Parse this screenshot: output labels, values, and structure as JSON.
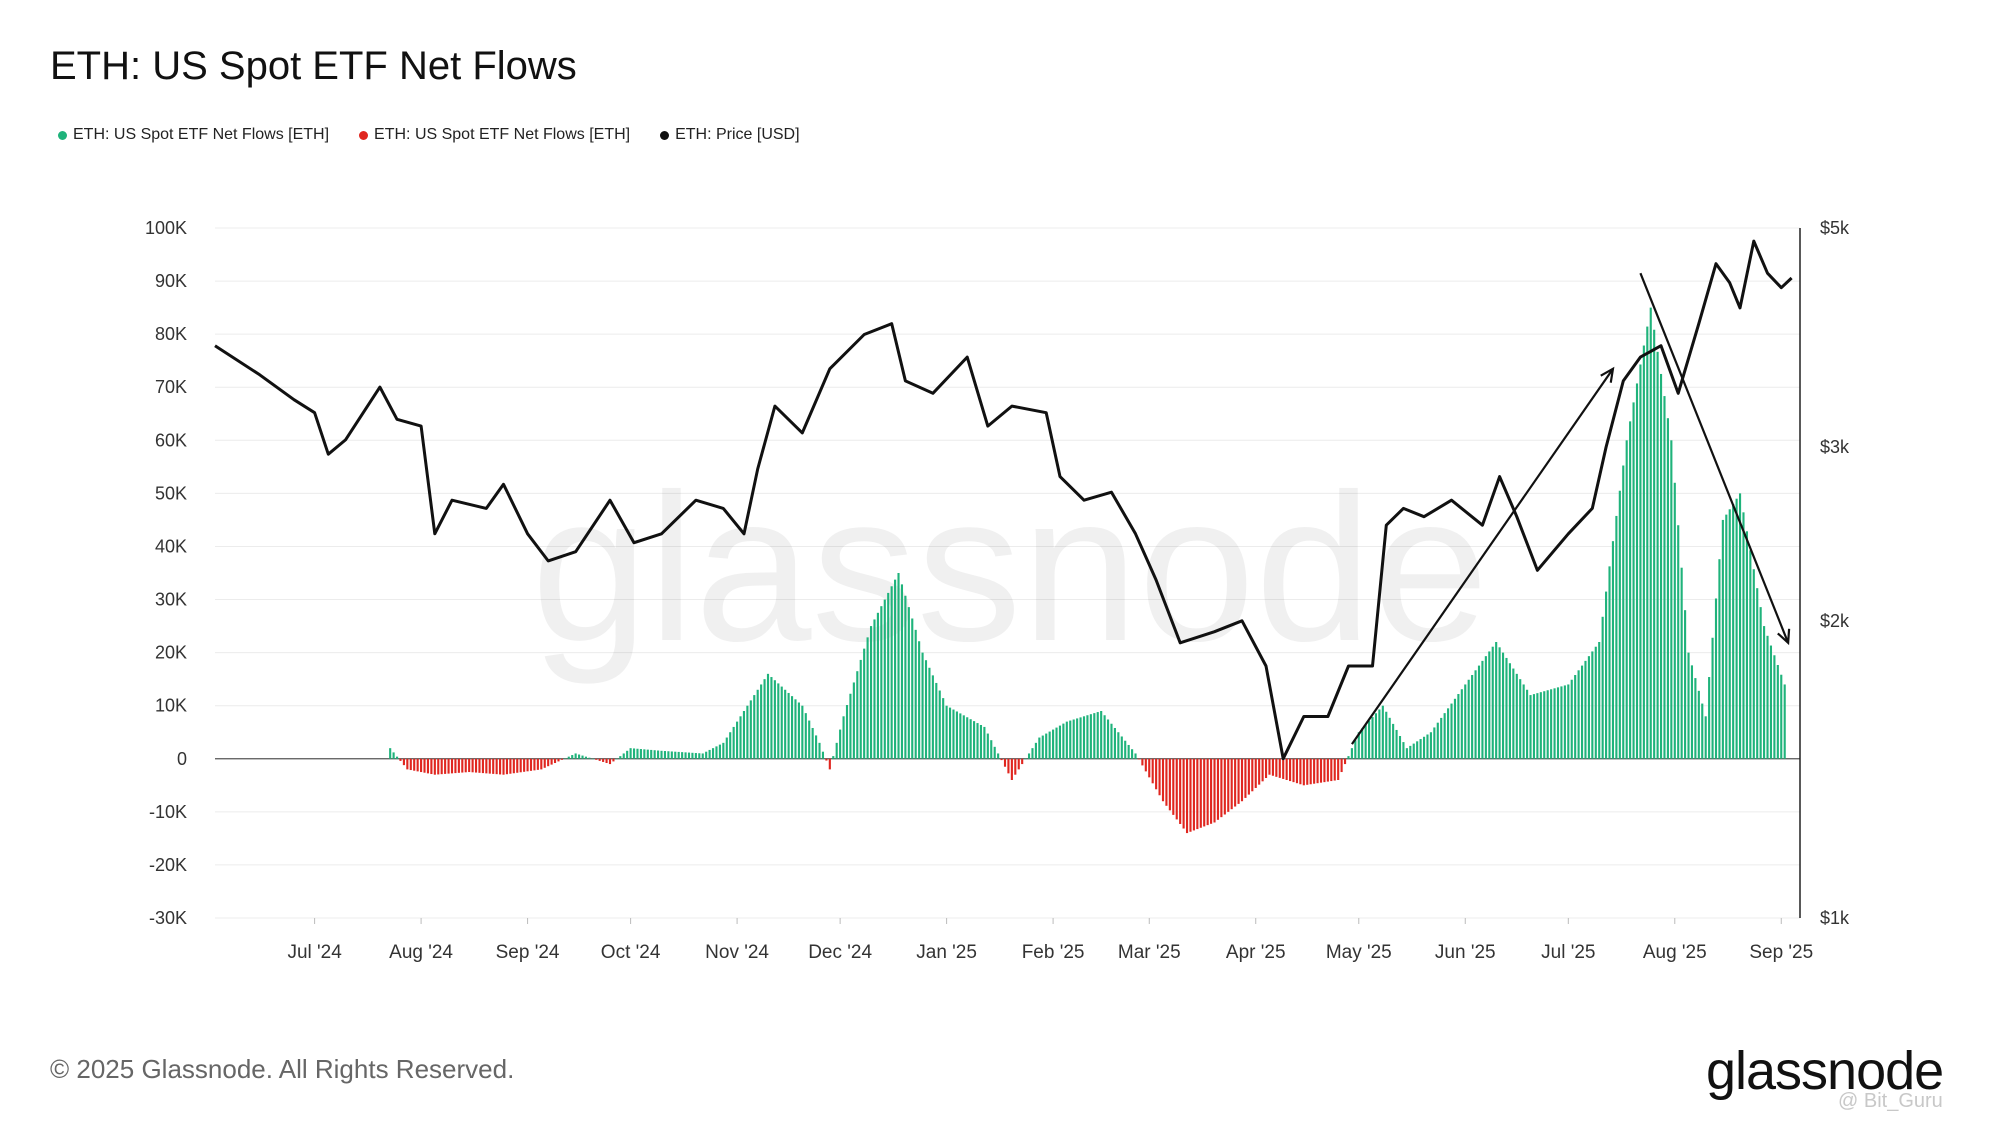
{
  "title": "ETH: US Spot ETF Net Flows",
  "legend": [
    {
      "label": "ETH: US Spot ETF Net Flows [ETH]",
      "color": "#1fb37b"
    },
    {
      "label": "ETH: US Spot ETF Net Flows [ETH]",
      "color": "#e0261f"
    },
    {
      "label": "ETH: Price [USD]",
      "color": "#111111"
    }
  ],
  "footer": "© 2025 Glassnode. All Rights Reserved.",
  "brand": "glassnode",
  "watermark": "glassnode",
  "credit": "@ Bit_Guru",
  "chart_data": {
    "type": "bar+line",
    "title": "ETH: US Spot ETF Net Flows",
    "left_axis": {
      "ticks": [
        "100K",
        "90K",
        "80K",
        "70K",
        "60K",
        "50K",
        "40K",
        "30K",
        "20K",
        "10K",
        "0",
        "-10K",
        "-20K",
        "-30K"
      ],
      "ylim": [
        -30000,
        100000
      ]
    },
    "right_axis": {
      "ticks": [
        "$5k",
        "$3k",
        "$2k",
        "$1k"
      ],
      "scale": "log",
      "ylim": [
        1000,
        5000
      ]
    },
    "x_ticks": [
      "Jul '24",
      "Aug '24",
      "Sep '24",
      "Oct '24",
      "Nov '24",
      "Dec '24",
      "Jan '25",
      "Feb '25",
      "Mar '25",
      "Apr '25",
      "May '25",
      "Jun '25",
      "Jul '25",
      "Aug '25",
      "Sep '25"
    ],
    "x_range": [
      "2024-06-02",
      "2025-09-05"
    ],
    "colors": {
      "positive": "#1fb37b",
      "negative": "#e0261f",
      "price": "#111111",
      "grid": "#ececec"
    },
    "flows": [
      {
        "date": "2024-07-23",
        "value": 2000
      },
      {
        "date": "2024-07-28",
        "value": -2000
      },
      {
        "date": "2024-08-05",
        "value": -3000
      },
      {
        "date": "2024-08-15",
        "value": -2500
      },
      {
        "date": "2024-08-25",
        "value": -3000
      },
      {
        "date": "2024-09-05",
        "value": -2000
      },
      {
        "date": "2024-09-15",
        "value": 1000
      },
      {
        "date": "2024-09-25",
        "value": -1000
      },
      {
        "date": "2024-10-01",
        "value": 2000
      },
      {
        "date": "2024-10-10",
        "value": 1500
      },
      {
        "date": "2024-10-22",
        "value": 1000
      },
      {
        "date": "2024-10-28",
        "value": 3000
      },
      {
        "date": "2024-11-02",
        "value": 8000
      },
      {
        "date": "2024-11-10",
        "value": 16000
      },
      {
        "date": "2024-11-20",
        "value": 10000
      },
      {
        "date": "2024-11-25",
        "value": 3000
      },
      {
        "date": "2024-11-28",
        "value": -2000
      },
      {
        "date": "2024-12-02",
        "value": 8000
      },
      {
        "date": "2024-12-10",
        "value": 25000
      },
      {
        "date": "2024-12-18",
        "value": 35000
      },
      {
        "date": "2024-12-25",
        "value": 20000
      },
      {
        "date": "2025-01-01",
        "value": 10000
      },
      {
        "date": "2025-01-12",
        "value": 6000
      },
      {
        "date": "2025-01-20",
        "value": -4000
      },
      {
        "date": "2025-01-28",
        "value": 4000
      },
      {
        "date": "2025-02-05",
        "value": 7000
      },
      {
        "date": "2025-02-15",
        "value": 9000
      },
      {
        "date": "2025-02-25",
        "value": 1000
      },
      {
        "date": "2025-03-05",
        "value": -8000
      },
      {
        "date": "2025-03-12",
        "value": -14000
      },
      {
        "date": "2025-03-20",
        "value": -12000
      },
      {
        "date": "2025-03-28",
        "value": -8000
      },
      {
        "date": "2025-04-05",
        "value": -3000
      },
      {
        "date": "2025-04-15",
        "value": -5000
      },
      {
        "date": "2025-04-25",
        "value": -4000
      },
      {
        "date": "2025-05-01",
        "value": 5000
      },
      {
        "date": "2025-05-08",
        "value": 10000
      },
      {
        "date": "2025-05-15",
        "value": 2000
      },
      {
        "date": "2025-05-22",
        "value": 5000
      },
      {
        "date": "2025-06-01",
        "value": 14000
      },
      {
        "date": "2025-06-10",
        "value": 22000
      },
      {
        "date": "2025-06-20",
        "value": 12000
      },
      {
        "date": "2025-07-01",
        "value": 14000
      },
      {
        "date": "2025-07-10",
        "value": 22000
      },
      {
        "date": "2025-07-18",
        "value": 60000
      },
      {
        "date": "2025-07-25",
        "value": 85000
      },
      {
        "date": "2025-07-31",
        "value": 60000
      },
      {
        "date": "2025-08-05",
        "value": 20000
      },
      {
        "date": "2025-08-10",
        "value": 8000
      },
      {
        "date": "2025-08-15",
        "value": 45000
      },
      {
        "date": "2025-08-20",
        "value": 50000
      },
      {
        "date": "2025-08-27",
        "value": 25000
      },
      {
        "date": "2025-09-02",
        "value": 14000
      }
    ],
    "price": [
      {
        "date": "2024-06-02",
        "value": 3800
      },
      {
        "date": "2024-06-15",
        "value": 3550
      },
      {
        "date": "2024-06-25",
        "value": 3350
      },
      {
        "date": "2024-07-01",
        "value": 3250
      },
      {
        "date": "2024-07-05",
        "value": 2950
      },
      {
        "date": "2024-07-10",
        "value": 3050
      },
      {
        "date": "2024-07-20",
        "value": 3450
      },
      {
        "date": "2024-07-25",
        "value": 3200
      },
      {
        "date": "2024-08-01",
        "value": 3150
      },
      {
        "date": "2024-08-05",
        "value": 2450
      },
      {
        "date": "2024-08-10",
        "value": 2650
      },
      {
        "date": "2024-08-20",
        "value": 2600
      },
      {
        "date": "2024-08-25",
        "value": 2750
      },
      {
        "date": "2024-09-01",
        "value": 2450
      },
      {
        "date": "2024-09-07",
        "value": 2300
      },
      {
        "date": "2024-09-15",
        "value": 2350
      },
      {
        "date": "2024-09-25",
        "value": 2650
      },
      {
        "date": "2024-10-02",
        "value": 2400
      },
      {
        "date": "2024-10-10",
        "value": 2450
      },
      {
        "date": "2024-10-20",
        "value": 2650
      },
      {
        "date": "2024-10-28",
        "value": 2600
      },
      {
        "date": "2024-11-03",
        "value": 2450
      },
      {
        "date": "2024-11-07",
        "value": 2850
      },
      {
        "date": "2024-11-12",
        "value": 3300
      },
      {
        "date": "2024-11-20",
        "value": 3100
      },
      {
        "date": "2024-11-28",
        "value": 3600
      },
      {
        "date": "2024-12-08",
        "value": 3900
      },
      {
        "date": "2024-12-16",
        "value": 4000
      },
      {
        "date": "2024-12-20",
        "value": 3500
      },
      {
        "date": "2024-12-28",
        "value": 3400
      },
      {
        "date": "2025-01-07",
        "value": 3700
      },
      {
        "date": "2025-01-13",
        "value": 3150
      },
      {
        "date": "2025-01-20",
        "value": 3300
      },
      {
        "date": "2025-01-30",
        "value": 3250
      },
      {
        "date": "2025-02-03",
        "value": 2800
      },
      {
        "date": "2025-02-10",
        "value": 2650
      },
      {
        "date": "2025-02-18",
        "value": 2700
      },
      {
        "date": "2025-02-25",
        "value": 2450
      },
      {
        "date": "2025-03-03",
        "value": 2200
      },
      {
        "date": "2025-03-10",
        "value": 1900
      },
      {
        "date": "2025-03-20",
        "value": 1950
      },
      {
        "date": "2025-03-28",
        "value": 2000
      },
      {
        "date": "2025-04-04",
        "value": 1800
      },
      {
        "date": "2025-04-09",
        "value": 1450
      },
      {
        "date": "2025-04-15",
        "value": 1600
      },
      {
        "date": "2025-04-22",
        "value": 1600
      },
      {
        "date": "2025-04-28",
        "value": 1800
      },
      {
        "date": "2025-05-05",
        "value": 1800
      },
      {
        "date": "2025-05-09",
        "value": 2500
      },
      {
        "date": "2025-05-14",
        "value": 2600
      },
      {
        "date": "2025-05-20",
        "value": 2550
      },
      {
        "date": "2025-05-28",
        "value": 2650
      },
      {
        "date": "2025-06-06",
        "value": 2500
      },
      {
        "date": "2025-06-11",
        "value": 2800
      },
      {
        "date": "2025-06-16",
        "value": 2550
      },
      {
        "date": "2025-06-22",
        "value": 2250
      },
      {
        "date": "2025-07-01",
        "value": 2450
      },
      {
        "date": "2025-07-08",
        "value": 2600
      },
      {
        "date": "2025-07-12",
        "value": 3000
      },
      {
        "date": "2025-07-17",
        "value": 3500
      },
      {
        "date": "2025-07-22",
        "value": 3700
      },
      {
        "date": "2025-07-28",
        "value": 3800
      },
      {
        "date": "2025-08-02",
        "value": 3400
      },
      {
        "date": "2025-08-08",
        "value": 4000
      },
      {
        "date": "2025-08-13",
        "value": 4600
      },
      {
        "date": "2025-08-17",
        "value": 4400
      },
      {
        "date": "2025-08-20",
        "value": 4150
      },
      {
        "date": "2025-08-24",
        "value": 4850
      },
      {
        "date": "2025-08-28",
        "value": 4500
      },
      {
        "date": "2025-09-01",
        "value": 4350
      },
      {
        "date": "2025-09-04",
        "value": 4450
      }
    ],
    "annotations": [
      {
        "type": "arrow",
        "from": {
          "date": "2025-04-29",
          "price": 1500
        },
        "to": {
          "date": "2025-07-14",
          "price": 3600
        }
      },
      {
        "type": "arrow",
        "from": {
          "date": "2025-07-22",
          "price": 4500
        },
        "to": {
          "date": "2025-09-03",
          "price": 1900
        }
      }
    ]
  }
}
